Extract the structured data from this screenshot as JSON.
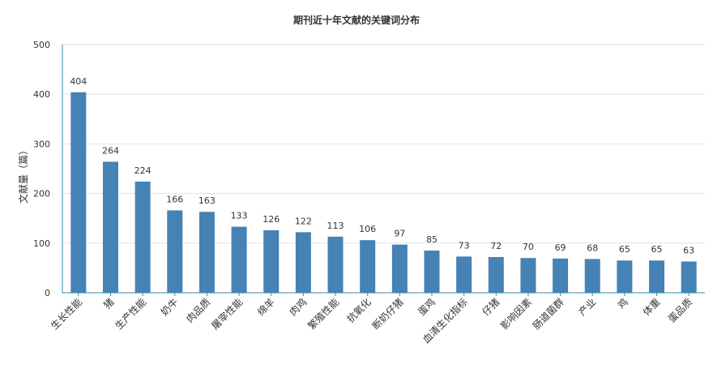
{
  "chart_data": {
    "type": "bar",
    "title": "期刊近十年文献的关键词分布",
    "ylabel": "文献量（篇）",
    "xlabel": "",
    "ylim": [
      0,
      500
    ],
    "yticks": [
      0,
      100,
      200,
      300,
      400,
      500
    ],
    "grid": true,
    "color": "#4682b4",
    "categories": [
      "生长性能",
      "猪",
      "生产性能",
      "奶牛",
      "肉品质",
      "屠宰性能",
      "绵羊",
      "肉鸡",
      "繁殖性能",
      "抗氧化",
      "断奶仔猪",
      "蛋鸡",
      "血清生化指标",
      "仔猪",
      "影响因素",
      "肠道菌群",
      "产业",
      "鸡",
      "体重",
      "蛋品质"
    ],
    "values": [
      404,
      264,
      224,
      166,
      163,
      133,
      126,
      122,
      113,
      106,
      97,
      85,
      73,
      72,
      70,
      69,
      68,
      65,
      65,
      63
    ]
  }
}
